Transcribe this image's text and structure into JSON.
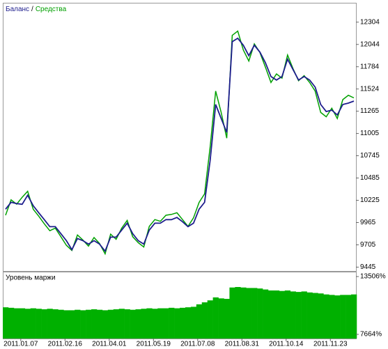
{
  "chart_data": [
    {
      "type": "line",
      "legend_separator": "/",
      "series": [
        {
          "name": "Средства",
          "color": "#00a000",
          "values": [
            10050,
            10230,
            10180,
            10260,
            10330,
            10120,
            10040,
            9950,
            9870,
            9900,
            9800,
            9700,
            9640,
            9820,
            9760,
            9690,
            9790,
            9720,
            9600,
            9830,
            9770,
            9900,
            9990,
            9800,
            9730,
            9680,
            9920,
            10000,
            9980,
            10050,
            10060,
            10080,
            10000,
            9920,
            10020,
            10200,
            10300,
            10850,
            11500,
            11250,
            10950,
            12150,
            12200,
            11980,
            11850,
            12050,
            11950,
            11780,
            11600,
            11700,
            11650,
            11920,
            11760,
            11620,
            11680,
            11600,
            11500,
            11250,
            11200,
            11300,
            11180,
            11400,
            11450,
            11420
          ]
        },
        {
          "name": "Баланс",
          "color": "#1c1c8c",
          "values": [
            10121,
            10202,
            10186,
            10178,
            10284,
            10162,
            10080,
            9999,
            9917,
            9917,
            9836,
            9754,
            9649,
            9779,
            9754,
            9714,
            9754,
            9714,
            9632,
            9795,
            9795,
            9877,
            9958,
            9836,
            9754,
            9714,
            9877,
            9958,
            9958,
            9999,
            9999,
            10024,
            9975,
            9917,
            9958,
            10121,
            10202,
            10691,
            11343,
            11180,
            11017,
            12076,
            12116,
            12035,
            11913,
            12035,
            11954,
            11831,
            11669,
            11628,
            11669,
            11872,
            11750,
            11628,
            11669,
            11628,
            11546,
            11343,
            11261,
            11277,
            11221,
            11343,
            11359,
            11383
          ]
        }
      ],
      "xlim": [
        0,
        63
      ],
      "xticks": [
        {
          "value": 2.75,
          "label": "2011.01.07"
        },
        {
          "value": 10.75,
          "label": "2011.02.16"
        },
        {
          "value": 18.75,
          "label": "2011.04.01"
        },
        {
          "value": 26.75,
          "label": "2011.05.19"
        },
        {
          "value": 34.75,
          "label": "2011.07.08"
        },
        {
          "value": 42.75,
          "label": "2011.08.31"
        },
        {
          "value": 50.75,
          "label": "2011.10.14"
        },
        {
          "value": 58.75,
          "label": "2011.11.23"
        }
      ],
      "ylim": [
        9400,
        12530
      ],
      "yticks": [
        9445,
        9705,
        9965,
        10225,
        10485,
        10745,
        11005,
        11265,
        11524,
        11784,
        12044,
        12304
      ]
    },
    {
      "type": "bar",
      "title": "Уровень маржи",
      "color": "#00b000",
      "values": [
        10400,
        10350,
        10300,
        10300,
        10250,
        10300,
        10250,
        10200,
        10250,
        10200,
        10150,
        10100,
        10100,
        10150,
        10100,
        10150,
        10200,
        10150,
        10100,
        10150,
        10200,
        10250,
        10200,
        10150,
        10200,
        10250,
        10300,
        10250,
        10300,
        10300,
        10350,
        10300,
        10350,
        10400,
        10450,
        10700,
        10900,
        11100,
        11400,
        11300,
        11250,
        12400,
        12450,
        12400,
        12350,
        12350,
        12300,
        12200,
        12100,
        12100,
        12050,
        12100,
        12000,
        11950,
        12000,
        11900,
        11850,
        11800,
        11700,
        11650,
        11600,
        11650,
        11650,
        11700
      ],
      "ylim": [
        7242,
        13928
      ],
      "yticks": [
        {
          "value": 7664,
          "label": "7664%"
        },
        {
          "value": 13506,
          "label": "13506%"
        }
      ]
    }
  ]
}
